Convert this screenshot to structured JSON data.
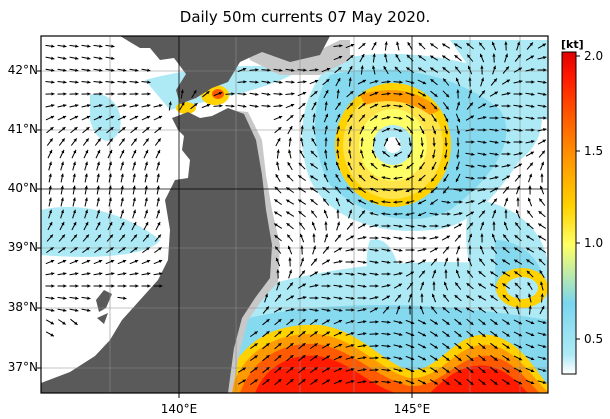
{
  "title": "Daily 50m currents 07 May 2020.",
  "lat_labels": [
    "42°N",
    "41°N",
    "40°N",
    "39°N",
    "38°N",
    "37°N"
  ],
  "lon_labels": [
    "140°E",
    "145°E"
  ],
  "colorbar": {
    "unit": "[kt]",
    "ticks": [
      "2.0",
      "1.5",
      "1.0",
      "0.5"
    ],
    "colors": [
      "#ffffff",
      "#aeeaf5",
      "#7ad6ee",
      "#ffff66",
      "#ffd200",
      "#ff9a00",
      "#ff5a00",
      "#ff1a00",
      "#e00000"
    ]
  },
  "land_color": "#5a5a5a",
  "shelf_color": "#c8c8c8"
}
